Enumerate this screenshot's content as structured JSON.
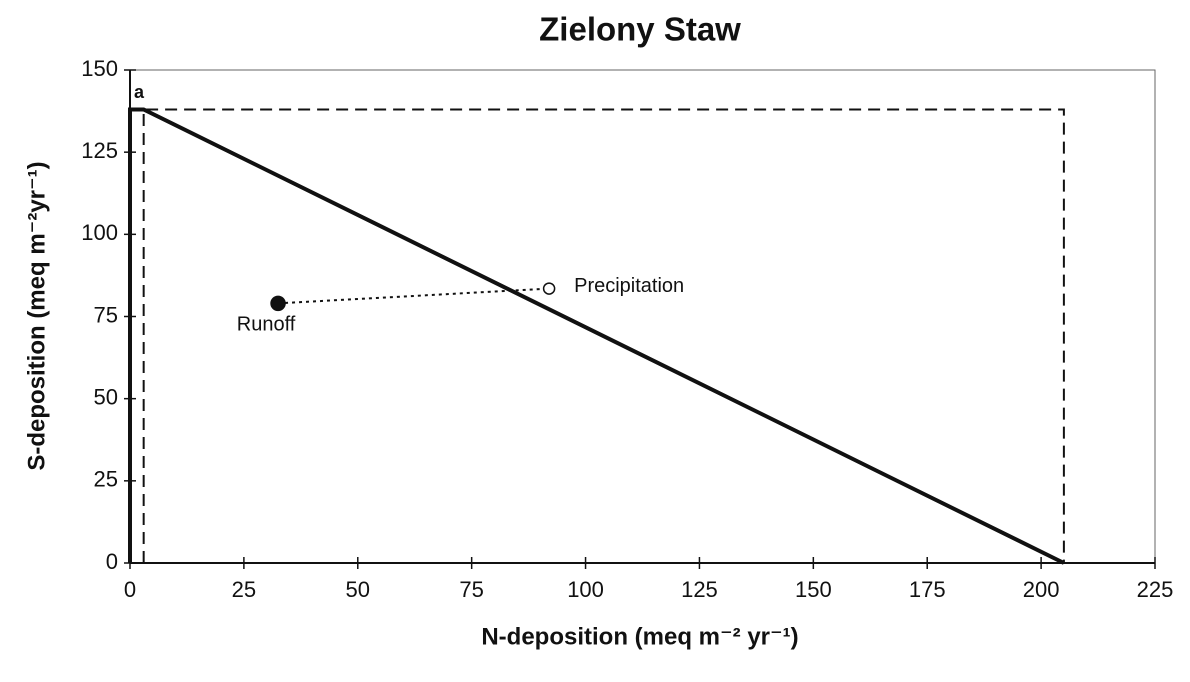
{
  "chart_data": {
    "type": "line",
    "title": "Zielony Staw",
    "x_label": "N-deposition (meq m⁻² yr⁻¹)",
    "y_label": "S-deposition (meq m⁻²yr⁻¹)",
    "annotation": "a",
    "xlim": [
      0,
      225
    ],
    "xticks": [
      0,
      25,
      50,
      75,
      100,
      125,
      150,
      175,
      200,
      225
    ],
    "ylim": [
      0,
      150
    ],
    "yticks": [
      0,
      25,
      50,
      75,
      100,
      125,
      150
    ],
    "grid": false,
    "series": [
      {
        "color": "#111111",
        "style": "solid",
        "x": [
          0,
          0,
          3,
          205
        ],
        "values": [
          0,
          138,
          138,
          0
        ]
      },
      {
        "color": "#111111",
        "style": "dashed",
        "x": [
          3,
          3,
          205,
          205
        ],
        "values": [
          0,
          138,
          138,
          0
        ]
      },
      {
        "color": "#111111",
        "style": "dotted",
        "x": [
          32.5,
          92
        ],
        "values": [
          79,
          83.5
        ],
        "labels": [
          "Runoff",
          "Precipitation"
        ],
        "markers": [
          "filled",
          "open"
        ]
      }
    ]
  }
}
